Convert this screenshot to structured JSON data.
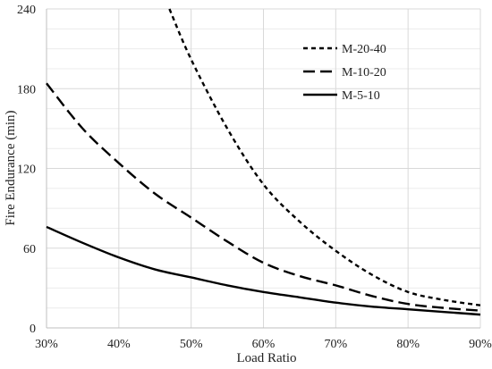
{
  "chart_data": {
    "type": "line",
    "title": "",
    "xlabel": "Load Ratio",
    "ylabel": "Fire Endurance (min)",
    "xlim": [
      0.3,
      0.9
    ],
    "ylim": [
      0,
      240
    ],
    "x_ticks": [
      "30%",
      "40%",
      "50%",
      "60%",
      "70%",
      "80%",
      "90%"
    ],
    "y_ticks": [
      "0",
      "60",
      "120",
      "180",
      "240"
    ],
    "grid": true,
    "legend_position": "top-right",
    "series": [
      {
        "name": "M-20-40",
        "style": "dotted",
        "color": "#000000",
        "points": [
          [
            0.47,
            240
          ],
          [
            0.5,
            202
          ],
          [
            0.55,
            150
          ],
          [
            0.6,
            108
          ],
          [
            0.65,
            80
          ],
          [
            0.7,
            58
          ],
          [
            0.75,
            40
          ],
          [
            0.8,
            27
          ],
          [
            0.85,
            21
          ],
          [
            0.9,
            17
          ]
        ]
      },
      {
        "name": "M-10-20",
        "style": "dashed",
        "color": "#000000",
        "points": [
          [
            0.3,
            184
          ],
          [
            0.35,
            150
          ],
          [
            0.4,
            124
          ],
          [
            0.45,
            101
          ],
          [
            0.5,
            83
          ],
          [
            0.55,
            65
          ],
          [
            0.6,
            49
          ],
          [
            0.65,
            39
          ],
          [
            0.7,
            32
          ],
          [
            0.75,
            24
          ],
          [
            0.8,
            18
          ],
          [
            0.85,
            15
          ],
          [
            0.9,
            13
          ]
        ]
      },
      {
        "name": "M-5-10",
        "style": "solid",
        "color": "#000000",
        "points": [
          [
            0.3,
            76
          ],
          [
            0.35,
            64
          ],
          [
            0.4,
            53
          ],
          [
            0.45,
            44
          ],
          [
            0.5,
            38
          ],
          [
            0.55,
            32
          ],
          [
            0.6,
            27
          ],
          [
            0.65,
            23
          ],
          [
            0.7,
            19
          ],
          [
            0.75,
            16
          ],
          [
            0.8,
            14
          ],
          [
            0.85,
            12
          ],
          [
            0.9,
            10
          ]
        ]
      }
    ]
  }
}
